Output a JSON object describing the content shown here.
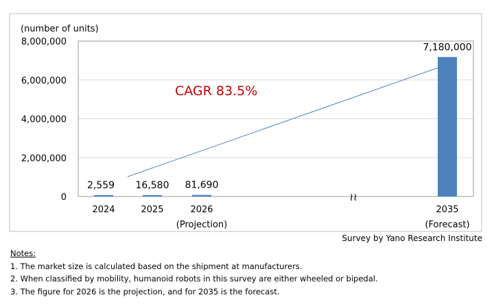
{
  "chart_data": {
    "type": "bar",
    "unit_label": "(number of units)",
    "categories": [
      "2024",
      "2025",
      "2026",
      "2035"
    ],
    "sub_labels": [
      "",
      "",
      "(Projection)",
      "(Forecast)"
    ],
    "values": [
      2559,
      16580,
      81690,
      7180000
    ],
    "value_labels": [
      "2,559",
      "16,580",
      "81,690",
      "7,180,000"
    ],
    "ylim": [
      0,
      8000000
    ],
    "yticks": [
      0,
      2000000,
      4000000,
      6000000,
      8000000
    ],
    "ytick_labels": [
      "0",
      "2,000,000",
      "4,000,000",
      "6,000,000",
      "8,000,000"
    ],
    "annotation": "CAGR 83.5%",
    "axis_break_symbol": "≀≀",
    "bar_color": "#4f81bd",
    "annotation_color": "#c00000",
    "grid": true,
    "legend": "none"
  },
  "source": "Survey by Yano Research Institute",
  "notes": {
    "title": "Notes:",
    "items": [
      "1. The market size is calculated based on the shipment  at manufacturers.",
      "2. When classified by mobility, humanoid robots in this survey are either wheeled or bipedal.",
      "3. The figure for 2026 is the projection, and for 2035 is the forecast."
    ]
  }
}
